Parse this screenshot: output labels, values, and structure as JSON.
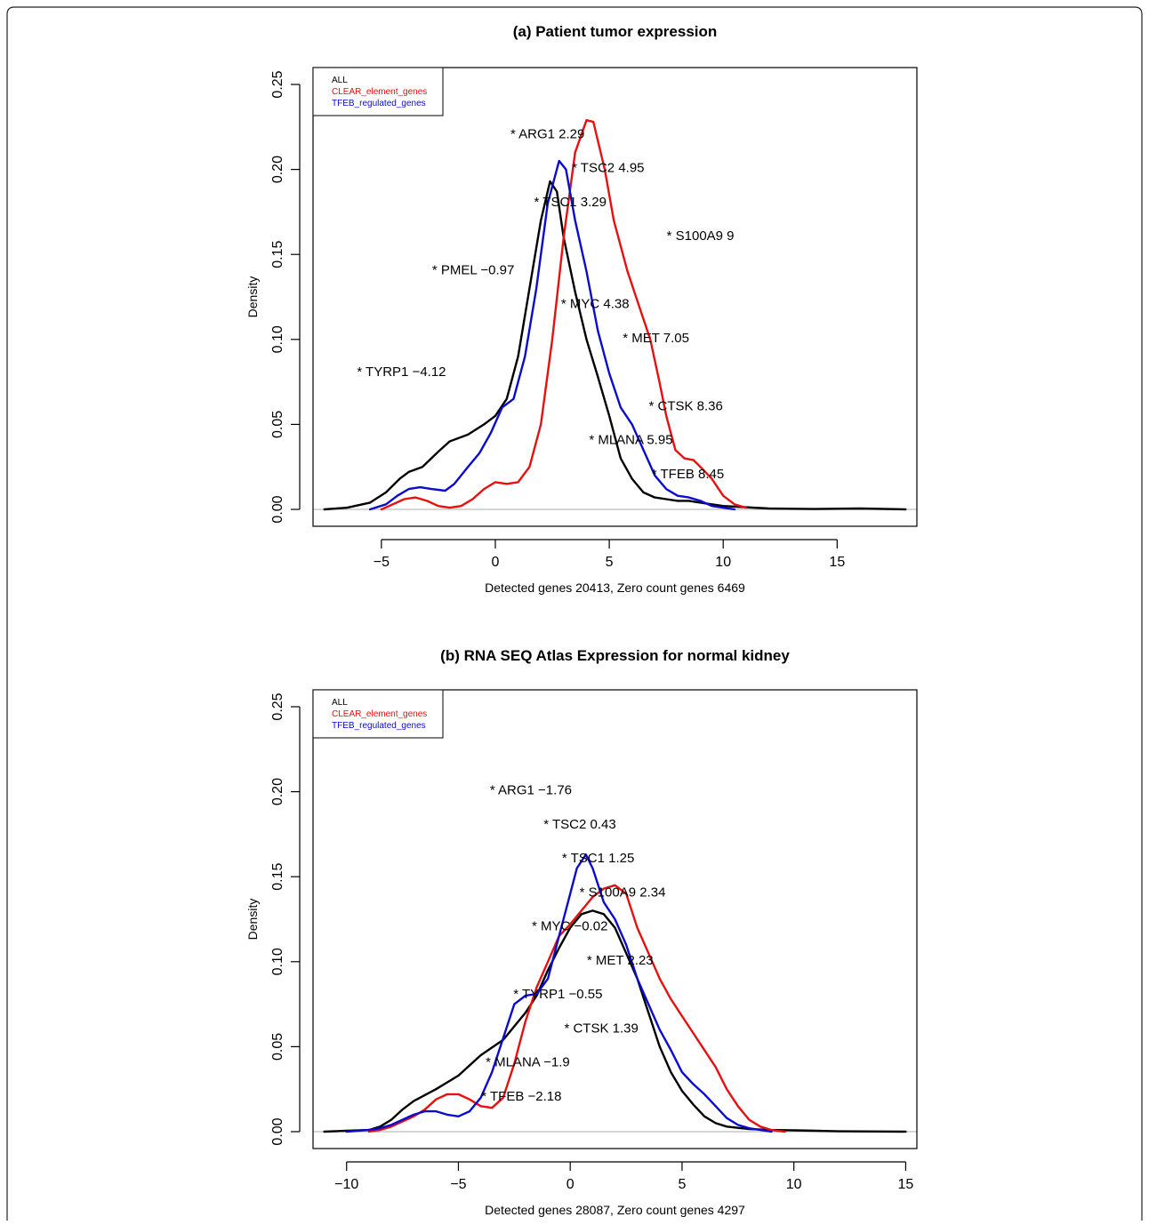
{
  "chart_data": [
    {
      "type": "line",
      "title": "(a) Patient tumor expression",
      "xlabel": "Detected genes 20413, Zero count genes 6469",
      "ylabel": "Density",
      "xlim": [
        -8,
        18.5
      ],
      "ylim": [
        0,
        0.25
      ],
      "xticks": [
        -5,
        0,
        5,
        10,
        15
      ],
      "xtick_labels": [
        "−5",
        "0",
        "5",
        "10",
        "15"
      ],
      "yticks": [
        0.0,
        0.05,
        0.1,
        0.15,
        0.2,
        0.25
      ],
      "ytick_labels": [
        "0.00",
        "0.05",
        "0.10",
        "0.15",
        "0.20",
        "0.25"
      ],
      "legend": {
        "position": "top-left",
        "entries": [
          {
            "label": "ALL",
            "color": "#000000"
          },
          {
            "label": "CLEAR_element_genes",
            "color": "#e8100f"
          },
          {
            "label": "TFEB_regulated_genes",
            "color": "#0b0bd0"
          }
        ]
      },
      "series": [
        {
          "name": "ALL",
          "color": "#000000",
          "points": [
            [
              -7.5,
              0
            ],
            [
              -6.5,
              0.001
            ],
            [
              -5.5,
              0.004
            ],
            [
              -4.8,
              0.01
            ],
            [
              -4.2,
              0.018
            ],
            [
              -3.8,
              0.022
            ],
            [
              -3.2,
              0.025
            ],
            [
              -2.5,
              0.034
            ],
            [
              -2,
              0.04
            ],
            [
              -1.2,
              0.044
            ],
            [
              -0.5,
              0.05
            ],
            [
              0,
              0.055
            ],
            [
              0.5,
              0.065
            ],
            [
              1,
              0.09
            ],
            [
              1.5,
              0.13
            ],
            [
              2,
              0.17
            ],
            [
              2.4,
              0.193
            ],
            [
              2.7,
              0.187
            ],
            [
              3,
              0.16
            ],
            [
              3.5,
              0.128
            ],
            [
              4,
              0.1
            ],
            [
              4.5,
              0.078
            ],
            [
              5,
              0.055
            ],
            [
              5.5,
              0.03
            ],
            [
              6,
              0.018
            ],
            [
              6.5,
              0.01
            ],
            [
              7,
              0.007
            ],
            [
              7.5,
              0.006
            ],
            [
              8,
              0.005
            ],
            [
              8.5,
              0.005
            ],
            [
              9,
              0.004
            ],
            [
              10,
              0.002
            ],
            [
              12,
              0.0005
            ],
            [
              14,
              0.0002
            ],
            [
              16,
              0.0005
            ],
            [
              18,
              0
            ]
          ]
        },
        {
          "name": "CLEAR_element_genes",
          "color": "#e8100f",
          "points": [
            [
              -5,
              0
            ],
            [
              -4.5,
              0.003
            ],
            [
              -4,
              0.006
            ],
            [
              -3.5,
              0.007
            ],
            [
              -3,
              0.005
            ],
            [
              -2.5,
              0.002
            ],
            [
              -2,
              0.001
            ],
            [
              -1.5,
              0.002
            ],
            [
              -1,
              0.006
            ],
            [
              -0.5,
              0.012
            ],
            [
              0,
              0.016
            ],
            [
              0.5,
              0.015
            ],
            [
              1,
              0.016
            ],
            [
              1.5,
              0.025
            ],
            [
              2,
              0.05
            ],
            [
              2.5,
              0.1
            ],
            [
              3,
              0.16
            ],
            [
              3.5,
              0.21
            ],
            [
              4,
              0.229
            ],
            [
              4.3,
              0.228
            ],
            [
              4.8,
              0.2
            ],
            [
              5.2,
              0.17
            ],
            [
              5.8,
              0.14
            ],
            [
              6.3,
              0.12
            ],
            [
              6.8,
              0.1
            ],
            [
              7.2,
              0.075
            ],
            [
              7.5,
              0.055
            ],
            [
              7.9,
              0.035
            ],
            [
              8.3,
              0.03
            ],
            [
              8.7,
              0.029
            ],
            [
              9,
              0.025
            ],
            [
              9.5,
              0.018
            ],
            [
              10,
              0.008
            ],
            [
              10.5,
              0.003
            ],
            [
              11,
              0.001
            ]
          ]
        },
        {
          "name": "TFEB_regulated_genes",
          "color": "#0b0bd0",
          "points": [
            [
              -5.5,
              0
            ],
            [
              -4.8,
              0.003
            ],
            [
              -4.3,
              0.008
            ],
            [
              -3.8,
              0.012
            ],
            [
              -3.3,
              0.013
            ],
            [
              -2.8,
              0.012
            ],
            [
              -2.2,
              0.011
            ],
            [
              -1.8,
              0.015
            ],
            [
              -1.2,
              0.025
            ],
            [
              -0.7,
              0.033
            ],
            [
              -0.2,
              0.045
            ],
            [
              0.3,
              0.06
            ],
            [
              0.8,
              0.065
            ],
            [
              1.3,
              0.09
            ],
            [
              1.8,
              0.13
            ],
            [
              2.3,
              0.18
            ],
            [
              2.8,
              0.205
            ],
            [
              3.1,
              0.2
            ],
            [
              3.5,
              0.17
            ],
            [
              4,
              0.14
            ],
            [
              4.5,
              0.105
            ],
            [
              5,
              0.08
            ],
            [
              5.5,
              0.06
            ],
            [
              6,
              0.05
            ],
            [
              6.5,
              0.035
            ],
            [
              7,
              0.02
            ],
            [
              7.5,
              0.012
            ],
            [
              8,
              0.008
            ],
            [
              8.5,
              0.007
            ],
            [
              9,
              0.005
            ],
            [
              9.5,
              0.002
            ],
            [
              10,
              0.001
            ],
            [
              10.5,
              0
            ]
          ]
        }
      ],
      "annotations": [
        {
          "text": "* ARG1 2.29",
          "x": 2.29,
          "y": 0.221
        },
        {
          "text": "* TSC2 4.95",
          "x": 4.95,
          "y": 0.201
        },
        {
          "text": "* TSC1 3.29",
          "x": 3.29,
          "y": 0.181
        },
        {
          "text": "* S100A9 9",
          "x": 9,
          "y": 0.161
        },
        {
          "text": "* PMEL −0.97",
          "x": -0.97,
          "y": 0.141
        },
        {
          "text": "* MYC 4.38",
          "x": 4.38,
          "y": 0.121
        },
        {
          "text": "* MET 7.05",
          "x": 7.05,
          "y": 0.101
        },
        {
          "text": "* TYRP1 −4.12",
          "x": -4.12,
          "y": 0.081
        },
        {
          "text": "* CTSK 8.36",
          "x": 8.36,
          "y": 0.061
        },
        {
          "text": "* MLANA 5.95",
          "x": 5.95,
          "y": 0.041
        },
        {
          "text": "* TFEB 8.45",
          "x": 8.45,
          "y": 0.021
        }
      ]
    },
    {
      "type": "line",
      "title": "(b) RNA SEQ Atlas Expression for normal kidney",
      "xlabel": "Detected genes 28087, Zero count genes 4297",
      "ylabel": "Density",
      "xlim": [
        -11.5,
        15.5
      ],
      "ylim": [
        0,
        0.25
      ],
      "xticks": [
        -10,
        -5,
        0,
        5,
        10,
        15
      ],
      "xtick_labels": [
        "−10",
        "−5",
        "0",
        "5",
        "10",
        "15"
      ],
      "yticks": [
        0.0,
        0.05,
        0.1,
        0.15,
        0.2,
        0.25
      ],
      "ytick_labels": [
        "0.00",
        "0.05",
        "0.10",
        "0.15",
        "0.20",
        "0.25"
      ],
      "legend": {
        "position": "top-left",
        "entries": [
          {
            "label": "ALL",
            "color": "#000000"
          },
          {
            "label": "CLEAR_element_genes",
            "color": "#e8100f"
          },
          {
            "label": "TFEB_regulated_genes",
            "color": "#0b0bd0"
          }
        ]
      },
      "series": [
        {
          "name": "ALL",
          "color": "#000000",
          "points": [
            [
              -11,
              0
            ],
            [
              -10,
              0.0005
            ],
            [
              -9,
              0.001
            ],
            [
              -8.5,
              0.003
            ],
            [
              -8,
              0.007
            ],
            [
              -7.5,
              0.013
            ],
            [
              -7,
              0.018
            ],
            [
              -6,
              0.025
            ],
            [
              -5,
              0.033
            ],
            [
              -4,
              0.045
            ],
            [
              -3,
              0.054
            ],
            [
              -2.5,
              0.062
            ],
            [
              -2,
              0.07
            ],
            [
              -1.5,
              0.08
            ],
            [
              -1,
              0.095
            ],
            [
              -0.5,
              0.108
            ],
            [
              0,
              0.12
            ],
            [
              0.5,
              0.128
            ],
            [
              1,
              0.13
            ],
            [
              1.5,
              0.128
            ],
            [
              2,
              0.12
            ],
            [
              2.5,
              0.105
            ],
            [
              3,
              0.09
            ],
            [
              3.5,
              0.07
            ],
            [
              4,
              0.05
            ],
            [
              4.5,
              0.035
            ],
            [
              5,
              0.024
            ],
            [
              5.5,
              0.016
            ],
            [
              6,
              0.009
            ],
            [
              6.5,
              0.005
            ],
            [
              7,
              0.003
            ],
            [
              8,
              0.0015
            ],
            [
              9,
              0.001
            ],
            [
              10,
              0.0008
            ],
            [
              11,
              0.0005
            ],
            [
              12,
              0.0002
            ],
            [
              15,
              0
            ]
          ]
        },
        {
          "name": "CLEAR_element_genes",
          "color": "#e8100f",
          "points": [
            [
              -9,
              0
            ],
            [
              -8.5,
              0.001
            ],
            [
              -8,
              0.003
            ],
            [
              -7.5,
              0.006
            ],
            [
              -7,
              0.009
            ],
            [
              -6.5,
              0.013
            ],
            [
              -6,
              0.019
            ],
            [
              -5.5,
              0.022
            ],
            [
              -5,
              0.022
            ],
            [
              -4.5,
              0.019
            ],
            [
              -4,
              0.015
            ],
            [
              -3.5,
              0.014
            ],
            [
              -3,
              0.02
            ],
            [
              -2.5,
              0.04
            ],
            [
              -2,
              0.065
            ],
            [
              -1.5,
              0.085
            ],
            [
              -1,
              0.1
            ],
            [
              -0.5,
              0.115
            ],
            [
              0,
              0.122
            ],
            [
              0.5,
              0.13
            ],
            [
              1,
              0.138
            ],
            [
              1.5,
              0.143
            ],
            [
              2,
              0.145
            ],
            [
              2.5,
              0.14
            ],
            [
              3,
              0.12
            ],
            [
              3.5,
              0.105
            ],
            [
              4,
              0.09
            ],
            [
              4.5,
              0.078
            ],
            [
              5,
              0.068
            ],
            [
              5.5,
              0.058
            ],
            [
              6,
              0.048
            ],
            [
              6.5,
              0.038
            ],
            [
              7,
              0.025
            ],
            [
              7.5,
              0.015
            ],
            [
              8,
              0.007
            ],
            [
              8.5,
              0.003
            ],
            [
              9,
              0.001
            ],
            [
              9.6,
              0
            ]
          ]
        },
        {
          "name": "TFEB_regulated_genes",
          "color": "#0b0bd0",
          "points": [
            [
              -10,
              0
            ],
            [
              -9,
              0.001
            ],
            [
              -8.5,
              0.002
            ],
            [
              -8,
              0.004
            ],
            [
              -7.5,
              0.007
            ],
            [
              -7,
              0.01
            ],
            [
              -6.5,
              0.012
            ],
            [
              -6,
              0.012
            ],
            [
              -5.5,
              0.01
            ],
            [
              -5,
              0.009
            ],
            [
              -4.5,
              0.012
            ],
            [
              -4,
              0.02
            ],
            [
              -3.5,
              0.035
            ],
            [
              -3,
              0.055
            ],
            [
              -2.5,
              0.075
            ],
            [
              -2,
              0.08
            ],
            [
              -1.5,
              0.081
            ],
            [
              -1,
              0.09
            ],
            [
              -0.5,
              0.115
            ],
            [
              0,
              0.14
            ],
            [
              0.3,
              0.155
            ],
            [
              0.7,
              0.163
            ],
            [
              1,
              0.155
            ],
            [
              1.5,
              0.135
            ],
            [
              2,
              0.125
            ],
            [
              2.5,
              0.11
            ],
            [
              3,
              0.09
            ],
            [
              3.5,
              0.075
            ],
            [
              4,
              0.06
            ],
            [
              4.5,
              0.048
            ],
            [
              5,
              0.035
            ],
            [
              5.5,
              0.028
            ],
            [
              6,
              0.022
            ],
            [
              6.5,
              0.015
            ],
            [
              7,
              0.008
            ],
            [
              7.5,
              0.004
            ],
            [
              8,
              0.002
            ],
            [
              9,
              0
            ]
          ]
        }
      ],
      "annotations": [
        {
          "text": "* ARG1 −1.76",
          "x": -1.76,
          "y": 0.201
        },
        {
          "text": "* TSC2 0.43",
          "x": 0.43,
          "y": 0.181
        },
        {
          "text": "* TSC1 1.25",
          "x": 1.25,
          "y": 0.161
        },
        {
          "text": "* S100A9 2.34",
          "x": 2.34,
          "y": 0.141
        },
        {
          "text": "* MYC −0.02",
          "x": -0.02,
          "y": 0.121
        },
        {
          "text": "* MET 2.23",
          "x": 2.23,
          "y": 0.101
        },
        {
          "text": "* TYRP1 −0.55",
          "x": -0.55,
          "y": 0.081
        },
        {
          "text": "* CTSK 1.39",
          "x": 1.39,
          "y": 0.061
        },
        {
          "text": "* MLANA −1.9",
          "x": -1.9,
          "y": 0.041
        },
        {
          "text": "* TFEB −2.18",
          "x": -2.18,
          "y": 0.021
        }
      ]
    }
  ]
}
